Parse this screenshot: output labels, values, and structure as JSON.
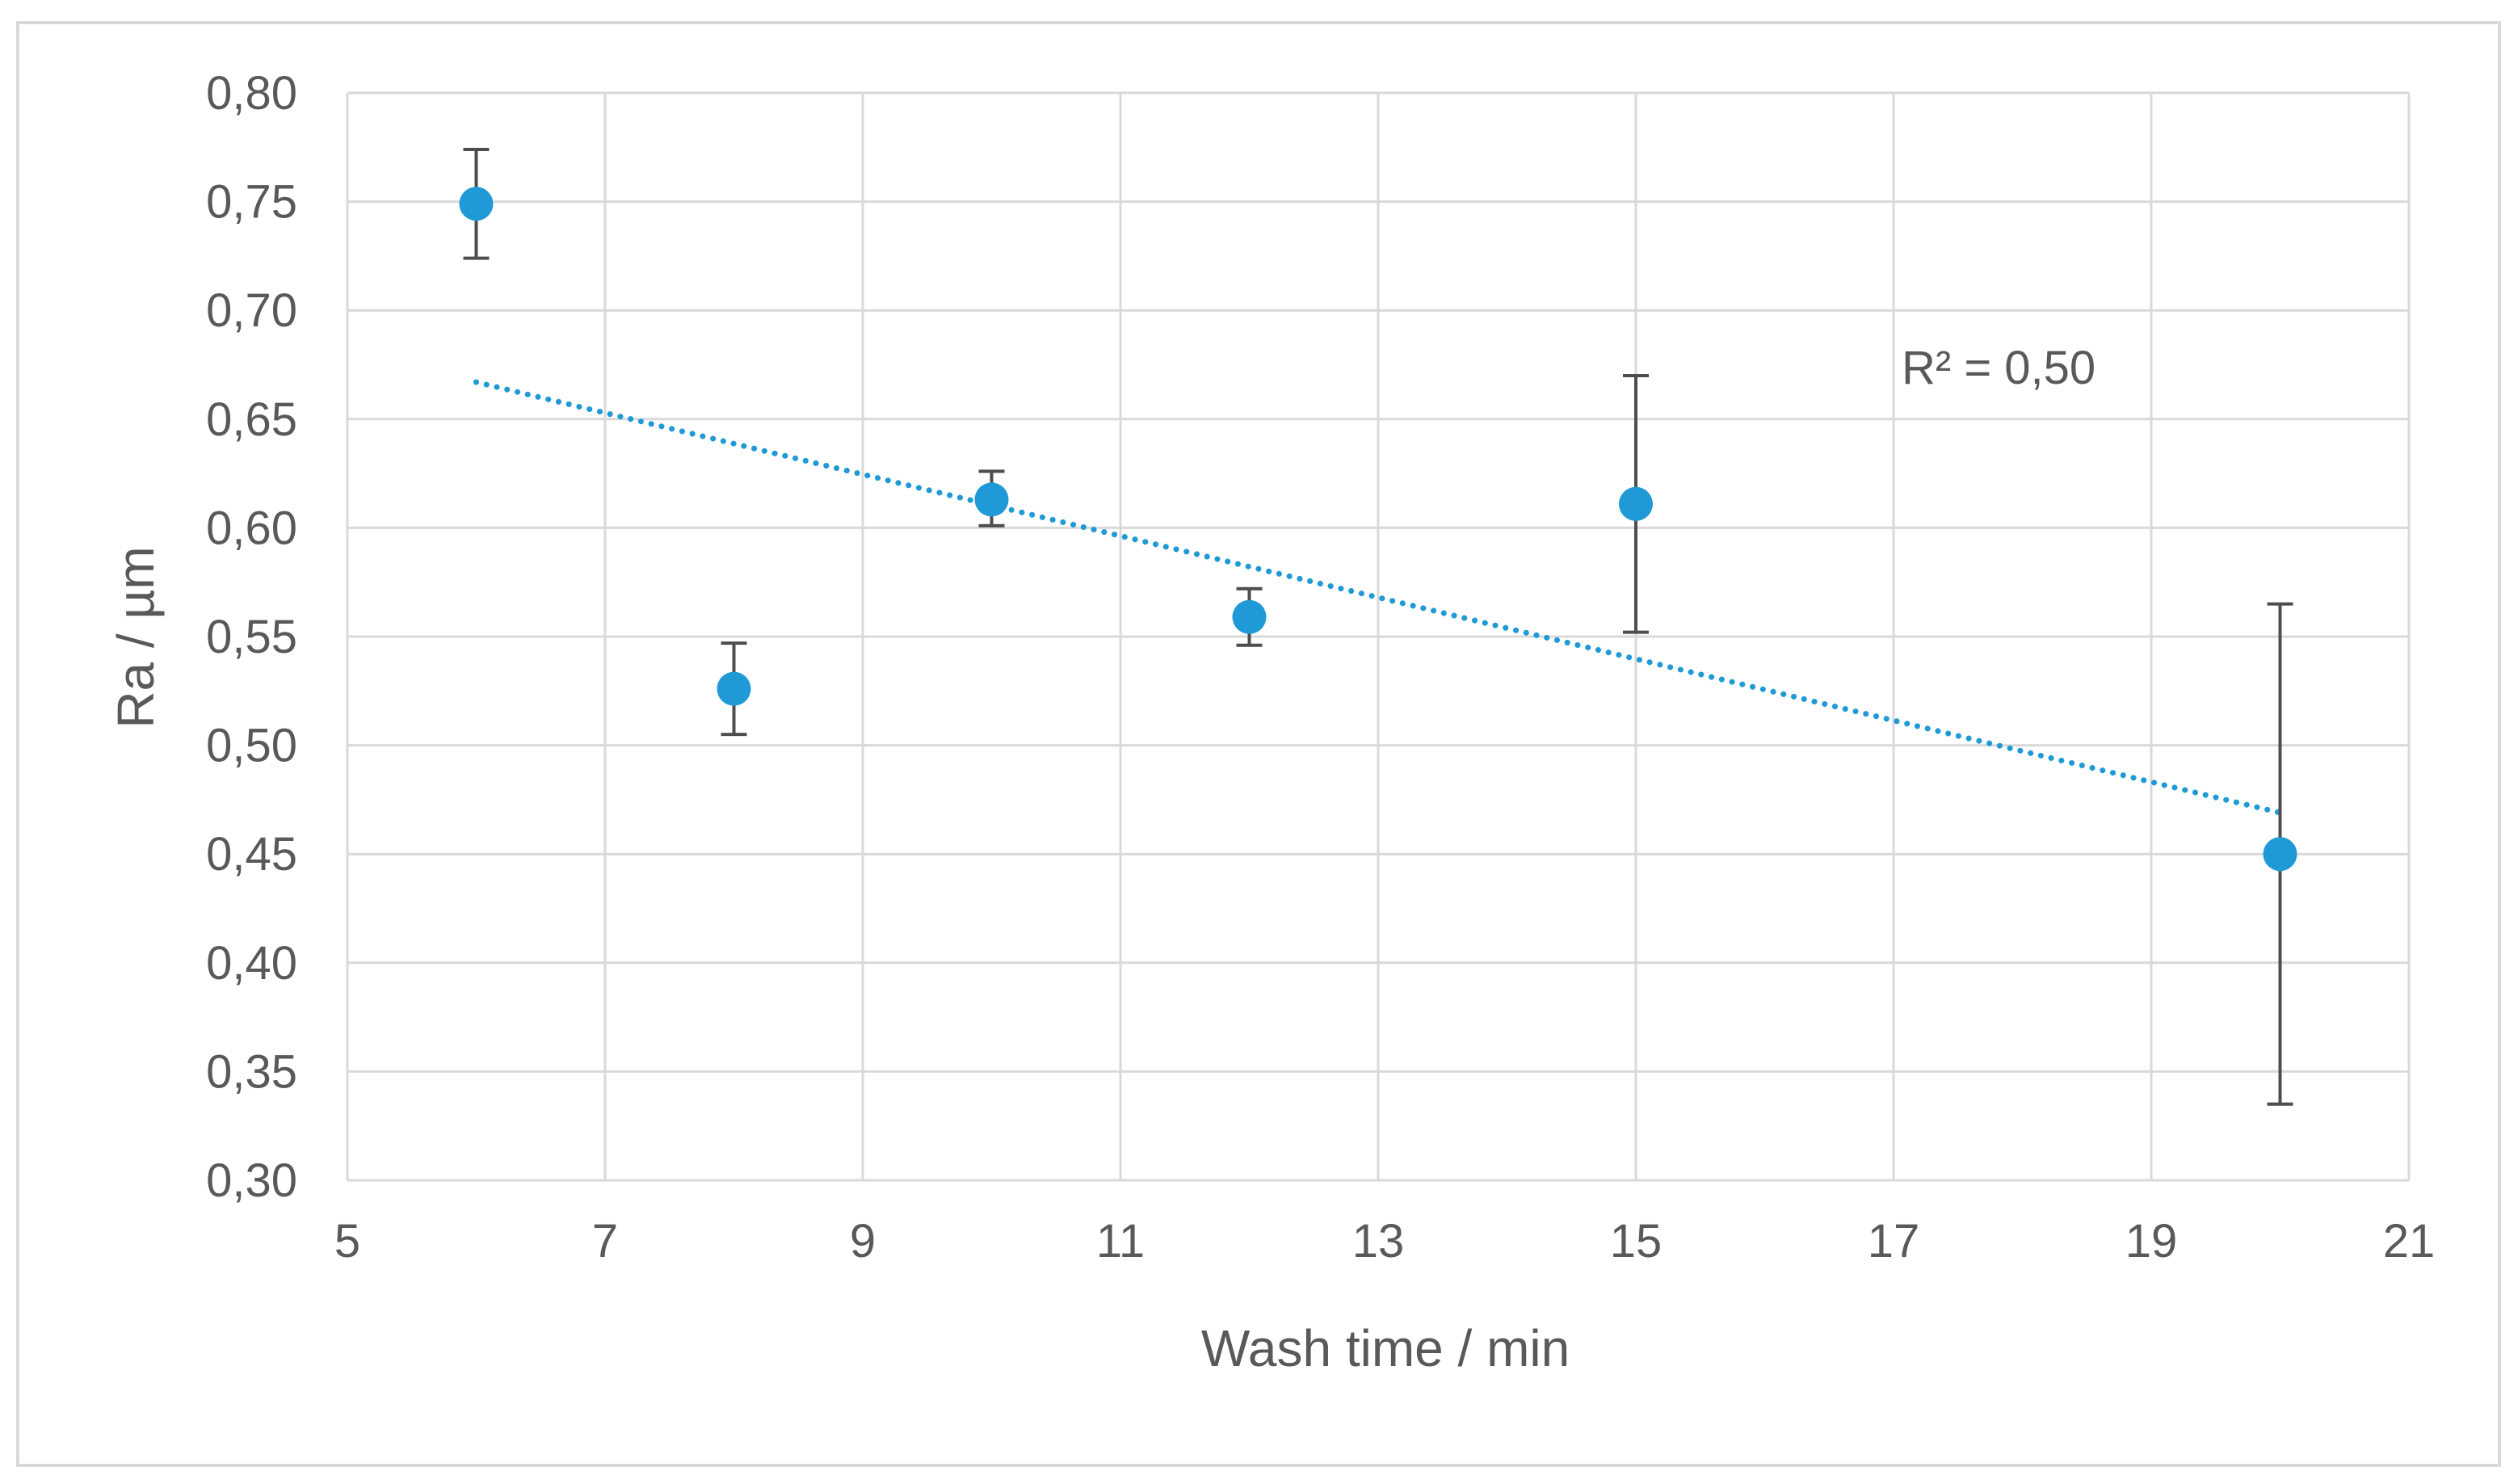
{
  "chart_data": {
    "type": "scatter",
    "xlabel": "Wash time / min",
    "ylabel": "Ra / µm",
    "xlim": [
      5,
      21
    ],
    "ylim": [
      0.3,
      0.8
    ],
    "x_ticks": [
      "5",
      "7",
      "9",
      "11",
      "13",
      "15",
      "17",
      "19",
      "21"
    ],
    "y_ticks": [
      "0,30",
      "0,35",
      "0,40",
      "0,45",
      "0,50",
      "0,55",
      "0,60",
      "0,65",
      "0,70",
      "0,75",
      "0,80"
    ],
    "grid": true,
    "legend": "none",
    "series": [
      {
        "points": [
          {
            "x": 6,
            "y": 0.749,
            "err_low": 0.724,
            "err_high": 0.774
          },
          {
            "x": 8,
            "y": 0.526,
            "err_low": 0.505,
            "err_high": 0.547
          },
          {
            "x": 10,
            "y": 0.613,
            "err_low": 0.601,
            "err_high": 0.626
          },
          {
            "x": 12,
            "y": 0.559,
            "err_low": 0.546,
            "err_high": 0.572
          },
          {
            "x": 15,
            "y": 0.611,
            "err_low": 0.552,
            "err_high": 0.67
          },
          {
            "x": 20,
            "y": 0.45,
            "err_low": 0.335,
            "err_high": 0.565
          }
        ]
      }
    ],
    "trendline": {
      "type": "linear",
      "style": "dotted",
      "x_start": 6,
      "y_start": 0.667,
      "x_end": 20,
      "y_end": 0.469
    },
    "annotation": "R² = 0,50",
    "colors": {
      "marker": "#1f9ad6",
      "trendline": "#1f9ad6",
      "error_bar": "#4d4d4d",
      "grid": "#d9d9d9",
      "text": "#595959",
      "frame": "#d9d9d9"
    }
  }
}
